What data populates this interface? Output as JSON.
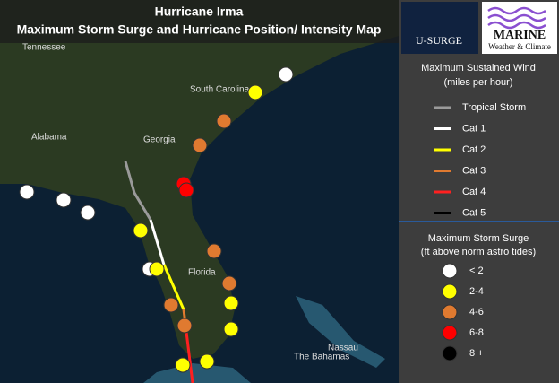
{
  "header": {
    "title_lines": [
      "Hurricane Irma",
      "Maximum Storm Surge and Hurricane Position/ Intensity Map"
    ]
  },
  "logos": {
    "usurge": "U-SURGE",
    "marine": "MARINE",
    "marine_sub": "Weather & Climate"
  },
  "map_labels": [
    "Tennessee",
    "South Carolina",
    "Alabama",
    "Georgia",
    "Florida",
    "Nassau",
    "The Bahamas"
  ],
  "wind_legend": {
    "title_lines": [
      "Maximum Sustained Wind",
      "(miles per hour)"
    ],
    "items": [
      {
        "label": "Tropical Storm",
        "color": "#9a9a9a"
      },
      {
        "label": "Cat 1",
        "color": "#ffffff"
      },
      {
        "label": "Cat 2",
        "color": "#ffff00"
      },
      {
        "label": "Cat 3",
        "color": "#e07a30"
      },
      {
        "label": "Cat 4",
        "color": "#ff2020"
      },
      {
        "label": "Cat 5",
        "color": "#000000"
      }
    ]
  },
  "surge_legend": {
    "title_lines": [
      "Maximum Storm Surge",
      "(ft above norm astro tides)"
    ],
    "items": [
      {
        "label": "< 2",
        "color": "#ffffff"
      },
      {
        "label": "2-4",
        "color": "#ffff00"
      },
      {
        "label": "4-6",
        "color": "#e07a30"
      },
      {
        "label": "6-8",
        "color": "#ff0000"
      },
      {
        "label": "8 +",
        "color": "#000000"
      }
    ]
  }
}
